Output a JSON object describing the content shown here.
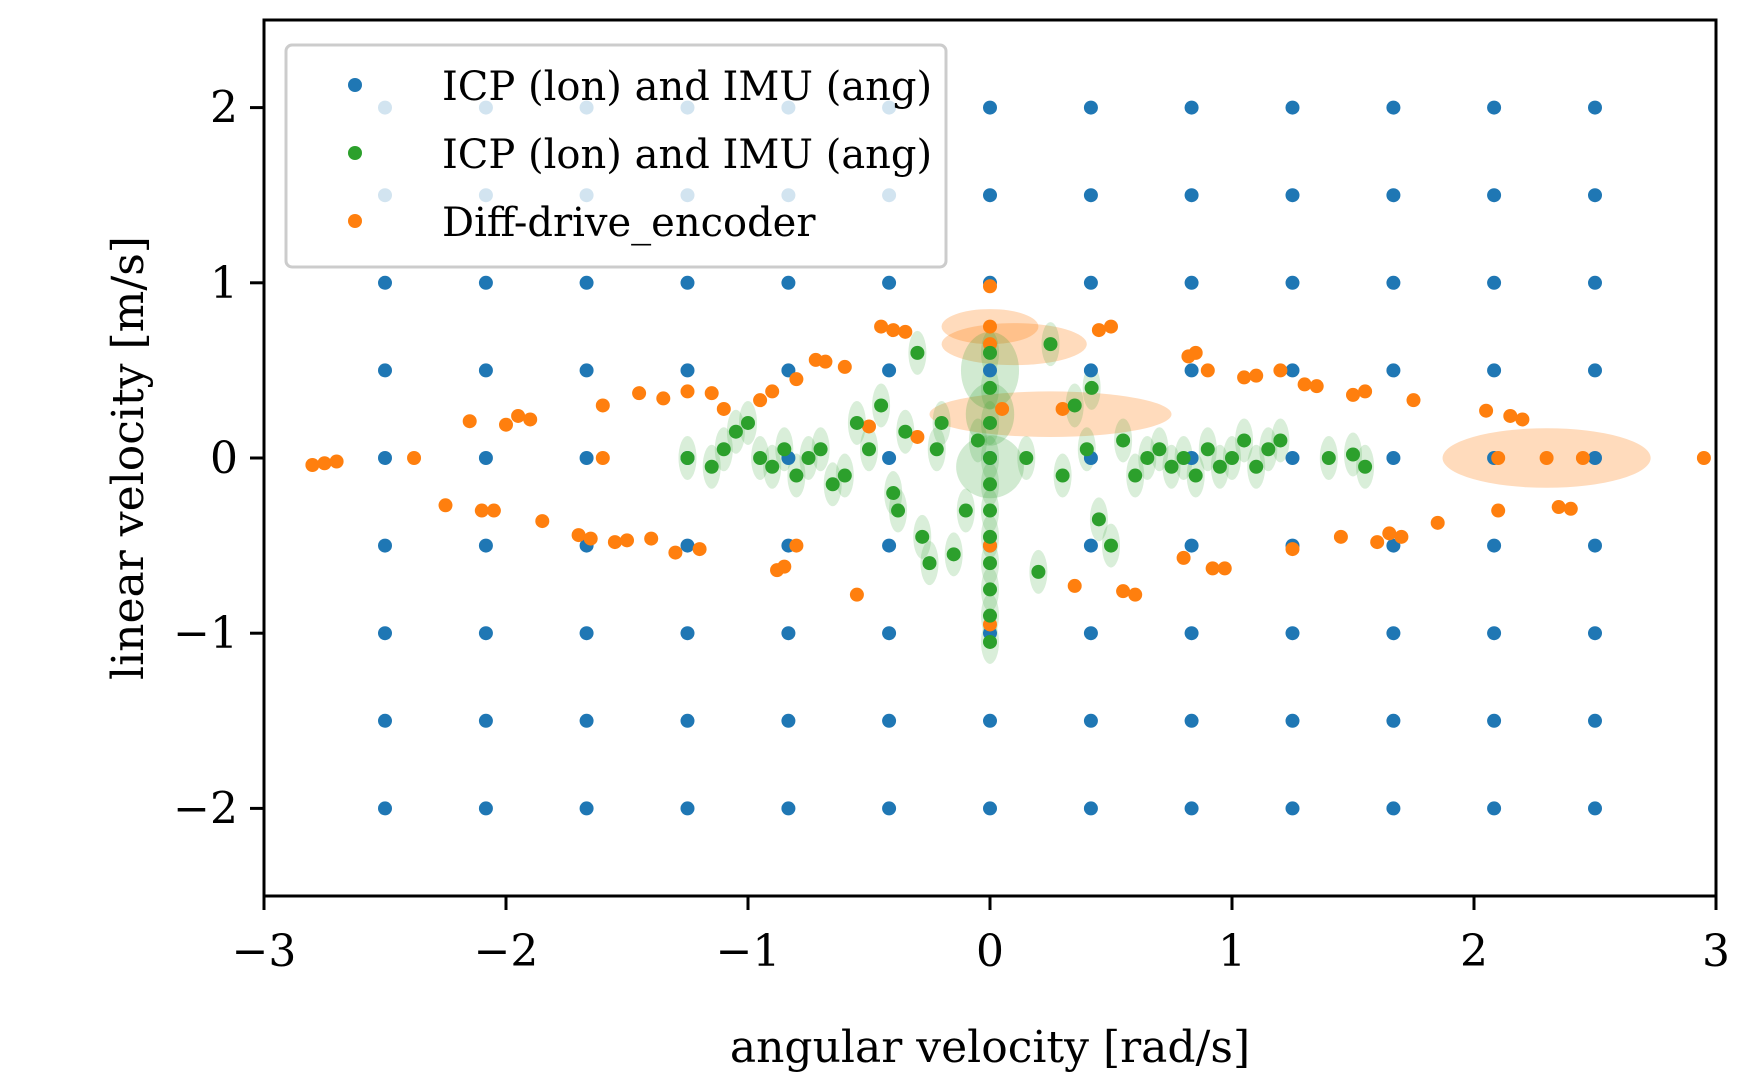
{
  "chart_data": {
    "type": "scatter",
    "xlabel": "angular velocity [rad/s]",
    "ylabel": "linear velocity [m/s]",
    "xlim": [
      -3,
      3
    ],
    "ylim": [
      -2.5,
      2.5
    ],
    "xticks": [
      -3,
      -2,
      -1,
      0,
      1,
      2,
      3
    ],
    "xtick_labels": [
      "−3",
      "−2",
      "−1",
      "0",
      "1",
      "2",
      "3"
    ],
    "yticks": [
      -2,
      -1,
      0,
      1,
      2
    ],
    "ytick_labels": [
      "−2",
      "−1",
      "0",
      "1",
      "2"
    ],
    "grid": false,
    "legend_position": "top-left",
    "series": [
      {
        "name": "ICP (lon) and IMU (ang)",
        "color": "#1f77b4",
        "grid_x": [
          -2.5,
          -2.083,
          -1.667,
          -1.25,
          -0.833,
          -0.417,
          0,
          0.417,
          0.833,
          1.25,
          1.667,
          2.083,
          2.5
        ],
        "grid_y": [
          2,
          1.5,
          1,
          0.5,
          0,
          -0.5,
          -1,
          -1.5,
          -2
        ]
      },
      {
        "name": "ICP (lon) and IMU (ang)",
        "color": "#2ca02c",
        "points": [
          [
            -1.25,
            0.0
          ],
          [
            -1.15,
            -0.05
          ],
          [
            -1.1,
            0.05
          ],
          [
            -1.05,
            0.15
          ],
          [
            -1.0,
            0.2
          ],
          [
            -0.95,
            0.0
          ],
          [
            -0.9,
            -0.05
          ],
          [
            -0.85,
            0.05
          ],
          [
            -0.8,
            -0.1
          ],
          [
            -0.75,
            0.0
          ],
          [
            -0.7,
            0.05
          ],
          [
            -0.65,
            -0.15
          ],
          [
            -0.6,
            -0.1
          ],
          [
            -0.55,
            0.2
          ],
          [
            -0.5,
            0.05
          ],
          [
            -0.45,
            0.3
          ],
          [
            -0.4,
            -0.2
          ],
          [
            -0.38,
            -0.3
          ],
          [
            -0.35,
            0.15
          ],
          [
            -0.3,
            0.6
          ],
          [
            -0.28,
            -0.45
          ],
          [
            -0.25,
            -0.6
          ],
          [
            -0.22,
            0.05
          ],
          [
            -0.2,
            0.2
          ],
          [
            -0.15,
            -0.55
          ],
          [
            -0.1,
            -0.3
          ],
          [
            -0.05,
            0.1
          ],
          [
            0.0,
            0.0
          ],
          [
            0.0,
            -0.15
          ],
          [
            0.0,
            -0.3
          ],
          [
            0.0,
            -0.45
          ],
          [
            0.0,
            -0.6
          ],
          [
            0.0,
            -0.75
          ],
          [
            0.0,
            -0.9
          ],
          [
            0.0,
            -1.05
          ],
          [
            0.0,
            0.2
          ],
          [
            0.0,
            0.4
          ],
          [
            0.0,
            0.6
          ],
          [
            0.15,
            0.0
          ],
          [
            0.2,
            -0.65
          ],
          [
            0.25,
            0.65
          ],
          [
            0.3,
            -0.1
          ],
          [
            0.35,
            0.3
          ],
          [
            0.4,
            0.05
          ],
          [
            0.42,
            0.4
          ],
          [
            0.45,
            -0.35
          ],
          [
            0.5,
            -0.5
          ],
          [
            0.55,
            0.1
          ],
          [
            0.6,
            -0.1
          ],
          [
            0.65,
            0.0
          ],
          [
            0.7,
            0.05
          ],
          [
            0.75,
            -0.05
          ],
          [
            0.8,
            0.0
          ],
          [
            0.85,
            -0.1
          ],
          [
            0.9,
            0.05
          ],
          [
            0.95,
            -0.05
          ],
          [
            1.0,
            0.0
          ],
          [
            1.05,
            0.1
          ],
          [
            1.1,
            -0.05
          ],
          [
            1.15,
            0.05
          ],
          [
            1.2,
            0.1
          ],
          [
            1.4,
            0.0
          ],
          [
            1.5,
            0.02
          ],
          [
            1.55,
            -0.05
          ]
        ],
        "uncertainty_ellipses": [
          {
            "x": 0.0,
            "y": 0.5,
            "rx": 0.12,
            "ry": 0.22
          },
          {
            "x": 0.0,
            "y": 0.25,
            "rx": 0.1,
            "ry": 0.18
          },
          {
            "x": 0.0,
            "y": -0.05,
            "rx": 0.14,
            "ry": 0.18
          }
        ]
      },
      {
        "name": "Diff-drive_encoder",
        "color": "#ff7f0e",
        "points": [
          [
            -2.8,
            -0.04
          ],
          [
            -2.75,
            -0.03
          ],
          [
            -2.7,
            -0.02
          ],
          [
            -2.38,
            0.0
          ],
          [
            -2.25,
            -0.27
          ],
          [
            -2.15,
            0.21
          ],
          [
            -2.1,
            -0.3
          ],
          [
            -2.05,
            -0.3
          ],
          [
            -2.0,
            0.19
          ],
          [
            -1.95,
            0.24
          ],
          [
            -1.9,
            0.22
          ],
          [
            -1.85,
            -0.36
          ],
          [
            -1.7,
            -0.44
          ],
          [
            -1.65,
            -0.46
          ],
          [
            -1.6,
            0.3
          ],
          [
            -1.6,
            0.0
          ],
          [
            -1.55,
            -0.48
          ],
          [
            -1.5,
            -0.47
          ],
          [
            -1.45,
            0.37
          ],
          [
            -1.4,
            -0.46
          ],
          [
            -1.35,
            0.34
          ],
          [
            -1.3,
            -0.54
          ],
          [
            -1.25,
            0.38
          ],
          [
            -1.2,
            -0.52
          ],
          [
            -1.15,
            0.37
          ],
          [
            -1.1,
            0.28
          ],
          [
            -0.95,
            0.33
          ],
          [
            -0.9,
            0.38
          ],
          [
            -0.88,
            -0.64
          ],
          [
            -0.85,
            -0.62
          ],
          [
            -0.8,
            0.45
          ],
          [
            -0.8,
            -0.5
          ],
          [
            -0.72,
            0.56
          ],
          [
            -0.68,
            0.55
          ],
          [
            -0.6,
            0.52
          ],
          [
            -0.55,
            -0.78
          ],
          [
            -0.5,
            0.18
          ],
          [
            -0.45,
            0.75
          ],
          [
            -0.4,
            0.73
          ],
          [
            -0.35,
            0.72
          ],
          [
            -0.3,
            0.12
          ],
          [
            0.0,
            0.98
          ],
          [
            0.0,
            0.75
          ],
          [
            0.0,
            0.65
          ],
          [
            0.0,
            -0.5
          ],
          [
            0.0,
            -0.95
          ],
          [
            0.05,
            0.28
          ],
          [
            0.3,
            0.28
          ],
          [
            0.35,
            -0.73
          ],
          [
            0.45,
            0.73
          ],
          [
            0.5,
            0.75
          ],
          [
            0.55,
            -0.76
          ],
          [
            0.6,
            -0.78
          ],
          [
            0.8,
            -0.57
          ],
          [
            0.82,
            0.58
          ],
          [
            0.85,
            0.6
          ],
          [
            0.9,
            0.5
          ],
          [
            0.92,
            -0.63
          ],
          [
            0.97,
            -0.63
          ],
          [
            1.05,
            0.46
          ],
          [
            1.1,
            0.47
          ],
          [
            1.2,
            0.5
          ],
          [
            1.25,
            -0.52
          ],
          [
            1.3,
            0.42
          ],
          [
            1.35,
            0.41
          ],
          [
            1.45,
            -0.45
          ],
          [
            1.5,
            0.36
          ],
          [
            1.55,
            0.38
          ],
          [
            1.6,
            -0.48
          ],
          [
            1.65,
            -0.43
          ],
          [
            1.7,
            -0.45
          ],
          [
            1.75,
            0.33
          ],
          [
            1.85,
            -0.37
          ],
          [
            2.05,
            0.27
          ],
          [
            2.1,
            -0.3
          ],
          [
            2.15,
            0.24
          ],
          [
            2.2,
            0.22
          ],
          [
            2.35,
            -0.28
          ],
          [
            2.4,
            -0.29
          ],
          [
            2.1,
            0.0
          ],
          [
            2.3,
            0.0
          ],
          [
            2.45,
            0.0
          ],
          [
            2.95,
            0.0
          ]
        ],
        "uncertainty_ellipses": [
          {
            "x": 0.0,
            "y": 0.75,
            "rx": 0.2,
            "ry": 0.1
          },
          {
            "x": 0.1,
            "y": 0.65,
            "rx": 0.3,
            "ry": 0.12
          },
          {
            "x": 0.25,
            "y": 0.25,
            "rx": 0.5,
            "ry": 0.13
          },
          {
            "x": 2.3,
            "y": 0.0,
            "rx": 0.43,
            "ry": 0.17
          }
        ]
      }
    ]
  }
}
